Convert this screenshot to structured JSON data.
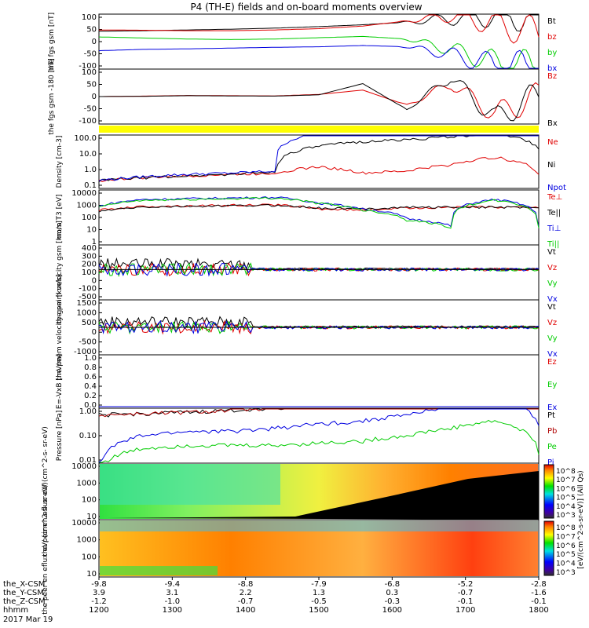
{
  "title": "P4 (TH-E) fields and on-board moments overview",
  "colors": {
    "black": "#000000",
    "red": "#e00000",
    "green": "#00cc00",
    "blue": "#0000e0",
    "yellow": "#ffff00",
    "darkred": "#b00000"
  },
  "chart_data": [
    {
      "type": "line",
      "ylabel": "the fgs gsm [nT]",
      "ylim": [
        -100,
        100
      ],
      "yticks": [
        "100",
        "50",
        "0",
        "-50",
        "-100"
      ],
      "series": [
        {
          "name": "Bt",
          "color": "black",
          "values": [
            40,
            42,
            45,
            48,
            52,
            58,
            65,
            75,
            90,
            100,
            100
          ]
        },
        {
          "name": "bz",
          "color": "red",
          "values": [
            45,
            44,
            42,
            42,
            45,
            50,
            60,
            80,
            100,
            70,
            30
          ]
        },
        {
          "name": "by",
          "color": "green",
          "values": [
            18,
            14,
            10,
            8,
            10,
            15,
            20,
            10,
            -30,
            -80,
            -100
          ]
        },
        {
          "name": "bx",
          "color": "blue",
          "values": [
            -35,
            -30,
            -28,
            -25,
            -22,
            -20,
            -15,
            -20,
            -50,
            -90,
            -100
          ]
        }
      ]
    },
    {
      "type": "line",
      "ylabel": "the fgs gsm -180 [nT]",
      "ylim": [
        -120,
        120
      ],
      "yticks": [
        "100",
        "50",
        "0",
        "-50",
        "-100"
      ],
      "series": [
        {
          "name": "Bz",
          "color": "red",
          "values": [
            0,
            2,
            5,
            4,
            3,
            10,
            30,
            -40,
            60,
            -80,
            0
          ]
        },
        {
          "name": "Bx",
          "color": "black",
          "values": [
            0,
            1,
            4,
            3,
            2,
            8,
            60,
            -60,
            90,
            -100,
            10
          ]
        }
      ]
    },
    {
      "type": "line",
      "ylabel": "Density [cm-3]",
      "log": true,
      "yticks": [
        "100.0",
        "10.0",
        "1.0",
        "0.1"
      ],
      "series": [
        {
          "name": "Ne",
          "color": "red",
          "values": [
            0.2,
            0.3,
            0.4,
            0.5,
            0.6,
            1.5,
            0.6,
            0.8,
            2,
            6,
            0.5
          ]
        },
        {
          "name": "Ni",
          "color": "black",
          "values": [
            0.2,
            0.3,
            0.4,
            0.5,
            0.7,
            30,
            60,
            80,
            120,
            200,
            20
          ]
        },
        {
          "name": "Npot",
          "color": "blue",
          "values": [
            0.2,
            0.35,
            0.5,
            0.6,
            0.8,
            200,
            200,
            200,
            200,
            200,
            200
          ]
        }
      ]
    },
    {
      "type": "line",
      "ylabel": "mom T3 [eV]",
      "log": true,
      "yticks": [
        "10000",
        "1000",
        "100",
        "10",
        "1"
      ],
      "series": [
        {
          "name": "Te⊥",
          "color": "red",
          "values": [
            400,
            800,
            900,
            1000,
            1100,
            500,
            400,
            600,
            700,
            700,
            700
          ]
        },
        {
          "name": "Te||",
          "color": "black",
          "values": [
            300,
            700,
            800,
            900,
            1000,
            600,
            500,
            700,
            700,
            700,
            700
          ]
        },
        {
          "name": "Ti⊥",
          "color": "blue",
          "values": [
            800,
            3000,
            3500,
            4000,
            4500,
            1500,
            500,
            80,
            20,
            3000,
            20
          ]
        },
        {
          "name": "Ti||",
          "color": "green",
          "values": [
            700,
            2500,
            3000,
            3500,
            4000,
            1400,
            400,
            60,
            15,
            2500,
            15
          ]
        }
      ]
    },
    {
      "type": "line",
      "ylabel": "the peim velocity gsm [km/s]",
      "ylim": [
        -500,
        400
      ],
      "yticks": [
        "400",
        "300",
        "200",
        "100",
        "0",
        "-100",
        "-500"
      ],
      "series": [
        {
          "name": "Vt",
          "color": "black"
        },
        {
          "name": "Vz",
          "color": "red"
        },
        {
          "name": "Vy",
          "color": "green"
        },
        {
          "name": "Vx",
          "color": "blue"
        }
      ]
    },
    {
      "type": "line",
      "ylabel": "the peem velocity gsm [km/s]",
      "ylim": [
        -1500,
        1500
      ],
      "yticks": [
        "1500",
        "1000",
        "500",
        "0",
        "-500",
        "-1000"
      ],
      "series": [
        {
          "name": "Vt",
          "color": "black"
        },
        {
          "name": "Vz",
          "color": "red"
        },
        {
          "name": "Vy",
          "color": "green"
        },
        {
          "name": "Vx",
          "color": "blue"
        }
      ]
    },
    {
      "type": "line",
      "ylabel": "E=-VxB [mV/m]",
      "ylim": [
        0,
        1
      ],
      "yticks": [
        "1.0",
        "0.8",
        "0.6",
        "0.4",
        "0.2",
        "0.0"
      ],
      "series": [
        {
          "name": "Ez",
          "color": "red"
        },
        {
          "name": "Ey",
          "color": "green"
        },
        {
          "name": "Ex",
          "color": "blue"
        }
      ]
    },
    {
      "type": "line",
      "ylabel": "Pressure [nPa]",
      "log": true,
      "yticks": [
        "1.00",
        "0.10",
        "0.01"
      ],
      "series": [
        {
          "name": "Pt",
          "color": "black",
          "values": [
            0.7,
            0.8,
            0.9,
            1.1,
            1.4,
            1.8,
            2.5,
            3.5,
            5,
            7,
            7
          ]
        },
        {
          "name": "Pb",
          "color": "darkred",
          "values": [
            0.7,
            0.8,
            0.9,
            1.1,
            1.4,
            1.8,
            2.5,
            3.5,
            5,
            7,
            7
          ]
        },
        {
          "name": "Pe",
          "color": "green",
          "values": [
            0.005,
            0.03,
            0.04,
            0.04,
            0.04,
            0.05,
            0.06,
            0.1,
            0.2,
            0.4,
            0.02
          ]
        },
        {
          "name": "Pi",
          "color": "blue",
          "values": [
            0.005,
            0.1,
            0.15,
            0.15,
            0.2,
            0.3,
            0.4,
            0.7,
            1.5,
            3,
            0.3
          ]
        }
      ]
    },
    {
      "type": "heatmap",
      "ylabel": "the peir en eflux eV/ (cm^2-s- sr-eV)",
      "yticks": [
        "10000",
        "1000",
        "100",
        "10"
      ],
      "colorbar_label": "[eV/(cm^2-s-sr-eV)] (All Qs)",
      "colorbar_ticks": [
        "10^8",
        "10^7",
        "10^6",
        "10^5",
        "10^4",
        "10^3"
      ]
    },
    {
      "type": "heatmap",
      "ylabel": "the peer en eflux eV/ (cm^2-s- sr-eV)",
      "yticks": [
        "10000",
        "1000",
        "100",
        "10"
      ],
      "colorbar_ticks": [
        "10^8",
        "10^7",
        "10^6",
        "10^5",
        "10^4",
        "10^3"
      ]
    }
  ],
  "x_axis": {
    "rows": [
      {
        "label": "the_X-CSM",
        "values": [
          "-9.8",
          "-9.4",
          "-8.8",
          "-7.9",
          "-6.8",
          "-5.2",
          "-2.8"
        ]
      },
      {
        "label": "the_Y-CSM",
        "values": [
          "3.9",
          "3.1",
          "2.2",
          "1.3",
          "0.3",
          "-0.7",
          "-1.6"
        ]
      },
      {
        "label": "the_Z-CSM",
        "values": [
          "-1.2",
          "-1.0",
          "-0.7",
          "-0.5",
          "-0.3",
          "-0.1",
          "-0.1"
        ]
      },
      {
        "label": "hhmm",
        "values": [
          "1200",
          "1300",
          "1400",
          "1500",
          "1600",
          "1700",
          "1800"
        ]
      }
    ],
    "date": "2017 Mar 19"
  }
}
